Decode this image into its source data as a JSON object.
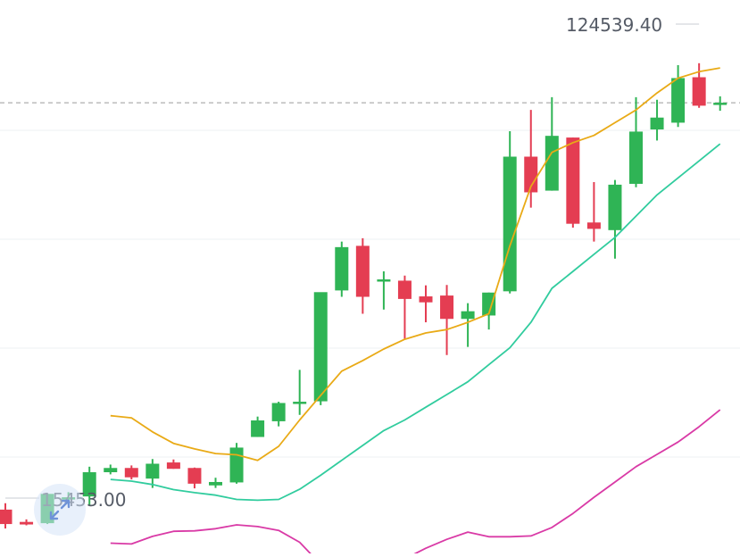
{
  "labels": {
    "max_price": "124539.40",
    "min_price": "15453.00"
  },
  "icons": {
    "expand": "expand-arrows-icon"
  },
  "colors": {
    "up": "#2fb455",
    "down": "#e43d52",
    "ma_short": "#e9aa16",
    "ma_mid": "#31cc9e",
    "ma_long": "#d93aa6",
    "current_price_line": "#9a9a9a",
    "grid": "#eef0f3",
    "expand_icon": "#6f93d8"
  },
  "chart_data": {
    "type": "candlestick",
    "axis": {
      "y_range": [
        10000,
        134000
      ],
      "grid": true,
      "y_axis_labels_shown": false
    },
    "candles": [
      {
        "open": 19900,
        "high": 21400,
        "low": 15450,
        "close": 16500
      },
      {
        "open": 17000,
        "high": 17600,
        "low": 16200,
        "close": 16400
      },
      {
        "open": 16700,
        "high": 23700,
        "low": 16500,
        "close": 23600
      },
      {
        "open": 22700,
        "high": 24000,
        "low": 21000,
        "close": 22800
      },
      {
        "open": 23000,
        "high": 30000,
        "low": 21000,
        "close": 28700
      },
      {
        "open": 28700,
        "high": 30500,
        "low": 28200,
        "close": 29700
      },
      {
        "open": 29700,
        "high": 30300,
        "low": 27000,
        "close": 27500
      },
      {
        "open": 27200,
        "high": 31800,
        "low": 25000,
        "close": 30700
      },
      {
        "open": 31000,
        "high": 31700,
        "low": 29500,
        "close": 29500
      },
      {
        "open": 29700,
        "high": 29800,
        "low": 24900,
        "close": 26000
      },
      {
        "open": 25600,
        "high": 27400,
        "low": 25000,
        "close": 26400
      },
      {
        "open": 26300,
        "high": 35600,
        "low": 26000,
        "close": 34500
      },
      {
        "open": 37000,
        "high": 41800,
        "low": 37000,
        "close": 40900
      },
      {
        "open": 40700,
        "high": 45300,
        "low": 39500,
        "close": 45000
      },
      {
        "open": 45100,
        "high": 52800,
        "low": 42200,
        "close": 45300
      },
      {
        "open": 45400,
        "high": 71000,
        "low": 44500,
        "close": 71100
      },
      {
        "open": 71500,
        "high": 83000,
        "low": 70000,
        "close": 81700
      },
      {
        "open": 82000,
        "high": 83800,
        "low": 66000,
        "close": 70000
      },
      {
        "open": 74000,
        "high": 76000,
        "low": 67000,
        "close": 74100
      },
      {
        "open": 73800,
        "high": 75000,
        "low": 60000,
        "close": 69500
      },
      {
        "open": 70100,
        "high": 72700,
        "low": 64000,
        "close": 68700
      },
      {
        "open": 70300,
        "high": 72800,
        "low": 56300,
        "close": 64800
      },
      {
        "open": 64800,
        "high": 68500,
        "low": 58200,
        "close": 66600
      },
      {
        "open": 65600,
        "high": 71000,
        "low": 62300,
        "close": 71000
      },
      {
        "open": 71300,
        "high": 109000,
        "low": 70800,
        "close": 103000
      },
      {
        "open": 103000,
        "high": 114000,
        "low": 91000,
        "close": 94600
      },
      {
        "open": 95000,
        "high": 117000,
        "low": 95000,
        "close": 107900
      },
      {
        "open": 107500,
        "high": 107500,
        "low": 86300,
        "close": 87200
      },
      {
        "open": 87500,
        "high": 97000,
        "low": 83000,
        "close": 86000
      },
      {
        "open": 85700,
        "high": 97500,
        "low": 79000,
        "close": 96400
      },
      {
        "open": 96600,
        "high": 117000,
        "low": 95800,
        "close": 108900
      },
      {
        "open": 109400,
        "high": 116400,
        "low": 106800,
        "close": 112200
      },
      {
        "open": 111000,
        "high": 124539.4,
        "low": 110000,
        "close": 121500
      },
      {
        "open": 121700,
        "high": 125000,
        "low": 114500,
        "close": 115000
      },
      {
        "open": 115200,
        "high": 117200,
        "low": 113800,
        "close": 115700
      }
    ],
    "series": [
      {
        "values": [
          null,
          null,
          null,
          null,
          null,
          42000,
          41500,
          38200,
          35500,
          34200,
          33100,
          32800,
          31500,
          34800,
          41000,
          46800,
          52500,
          55000,
          57700,
          60000,
          61500,
          62300,
          64000,
          66000,
          82000,
          96000,
          104000,
          106300,
          108000,
          111000,
          114000,
          118000,
          121500,
          123000,
          123900
        ]
      },
      {
        "values": [
          null,
          null,
          null,
          null,
          null,
          27000,
          26600,
          25800,
          24600,
          23900,
          23300,
          22300,
          22100,
          22300,
          24700,
          28000,
          31500,
          35000,
          38500,
          41000,
          44000,
          47000,
          50000,
          54000,
          58000,
          64000,
          72000,
          76000,
          80000,
          84000,
          89000,
          94000,
          98000,
          102000,
          106000
        ]
      },
      {
        "values": [
          null,
          null,
          null,
          null,
          null,
          12000,
          11800,
          13600,
          14800,
          14900,
          15400,
          16300,
          15900,
          15000,
          12200,
          7000,
          6900,
          6700,
          7200,
          8300,
          10800,
          12900,
          14600,
          13500,
          13500,
          13700,
          15700,
          19000,
          22800,
          26400,
          30000,
          32900,
          35800,
          39400,
          43400
        ]
      }
    ],
    "current_price": 115700
  }
}
